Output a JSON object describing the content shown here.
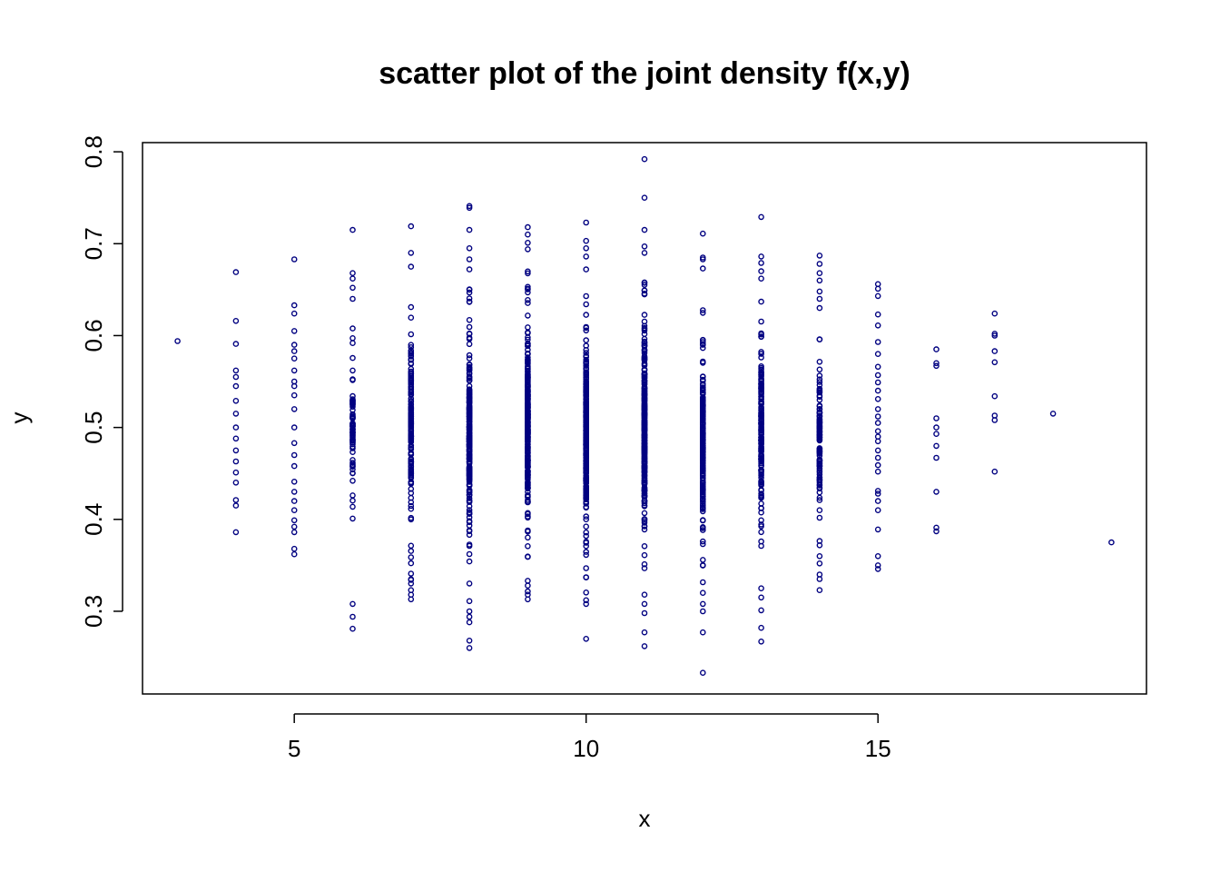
{
  "chart_data": {
    "type": "scatter",
    "title": "scatter plot of the joint density f(x,y)",
    "xlabel": "x",
    "ylabel": "y",
    "xlim": [
      2.4,
      19.6
    ],
    "ylim": [
      0.21,
      0.81
    ],
    "x_ticks": [
      5,
      10,
      15
    ],
    "y_ticks": [
      0.3,
      0.4,
      0.5,
      0.6,
      0.7,
      0.8
    ],
    "x_tick_labels": [
      "5",
      "10",
      "15"
    ],
    "y_tick_labels": [
      "0.3",
      "0.4",
      "0.5",
      "0.6",
      "0.7",
      "0.8"
    ],
    "grid": false,
    "legend": "none",
    "point_style": "open-circle",
    "color": "#000080",
    "columns": [
      {
        "x": 3,
        "y": [
          0.594
        ]
      },
      {
        "x": 4,
        "y": [
          0.669,
          0.616,
          0.591,
          0.562,
          0.555,
          0.545,
          0.529,
          0.515,
          0.5,
          0.488,
          0.475,
          0.463,
          0.451,
          0.44,
          0.421,
          0.415,
          0.386
        ]
      },
      {
        "x": 5,
        "y": [
          0.683,
          0.633,
          0.624,
          0.605,
          0.59,
          0.583,
          0.575,
          0.562,
          0.55,
          0.545,
          0.535,
          0.52,
          0.5,
          0.483,
          0.47,
          0.458,
          0.441,
          0.43,
          0.42,
          0.41,
          0.399,
          0.392,
          0.386,
          0.368,
          0.362
        ]
      },
      {
        "x": 6,
        "min": 0.37,
        "max": 0.62,
        "n": 60,
        "extras": [
          0.715,
          0.668,
          0.662,
          0.652,
          0.64,
          0.308,
          0.294,
          0.281
        ]
      },
      {
        "x": 7,
        "min": 0.33,
        "max": 0.67,
        "n": 130,
        "extras": [
          0.719,
          0.69,
          0.675,
          0.323,
          0.318,
          0.313
        ]
      },
      {
        "x": 8,
        "min": 0.32,
        "max": 0.66,
        "n": 220,
        "extras": [
          0.741,
          0.739,
          0.715,
          0.695,
          0.683,
          0.672,
          0.311,
          0.3,
          0.294,
          0.288,
          0.268,
          0.26
        ]
      },
      {
        "x": 9,
        "min": 0.32,
        "max": 0.68,
        "n": 240,
        "extras": [
          0.718,
          0.71,
          0.701,
          0.694,
          0.318,
          0.313
        ]
      },
      {
        "x": 10,
        "min": 0.32,
        "max": 0.66,
        "n": 260,
        "extras": [
          0.723,
          0.703,
          0.695,
          0.686,
          0.672,
          0.312,
          0.308,
          0.27
        ]
      },
      {
        "x": 11,
        "min": 0.33,
        "max": 0.67,
        "n": 260,
        "extras": [
          0.792,
          0.75,
          0.715,
          0.697,
          0.69,
          0.318,
          0.308,
          0.298,
          0.277,
          0.262
        ]
      },
      {
        "x": 12,
        "min": 0.33,
        "max": 0.65,
        "n": 200,
        "extras": [
          0.711,
          0.685,
          0.683,
          0.673,
          0.32,
          0.308,
          0.3,
          0.277,
          0.233
        ]
      },
      {
        "x": 13,
        "min": 0.35,
        "max": 0.65,
        "n": 140,
        "extras": [
          0.729,
          0.686,
          0.679,
          0.67,
          0.662,
          0.325,
          0.315,
          0.301,
          0.282,
          0.267
        ]
      },
      {
        "x": 14,
        "min": 0.37,
        "max": 0.62,
        "n": 90,
        "extras": [
          0.687,
          0.678,
          0.668,
          0.66,
          0.648,
          0.64,
          0.63,
          0.36,
          0.352,
          0.34,
          0.335,
          0.323
        ]
      },
      {
        "x": 15,
        "y": [
          0.656,
          0.651,
          0.643,
          0.623,
          0.611,
          0.593,
          0.58,
          0.566,
          0.557,
          0.549,
          0.54,
          0.531,
          0.52,
          0.512,
          0.505,
          0.496,
          0.49,
          0.485,
          0.475,
          0.467,
          0.459,
          0.452,
          0.431,
          0.428,
          0.42,
          0.41,
          0.389,
          0.36,
          0.35,
          0.346
        ]
      },
      {
        "x": 16,
        "y": [
          0.585,
          0.57,
          0.567,
          0.51,
          0.5,
          0.493,
          0.48,
          0.467,
          0.43,
          0.391,
          0.387
        ]
      },
      {
        "x": 17,
        "y": [
          0.624,
          0.602,
          0.6,
          0.583,
          0.571,
          0.534,
          0.513,
          0.508,
          0.452
        ]
      },
      {
        "x": 18,
        "y": [
          0.515
        ]
      },
      {
        "x": 19,
        "y": [
          0.375
        ]
      }
    ]
  }
}
